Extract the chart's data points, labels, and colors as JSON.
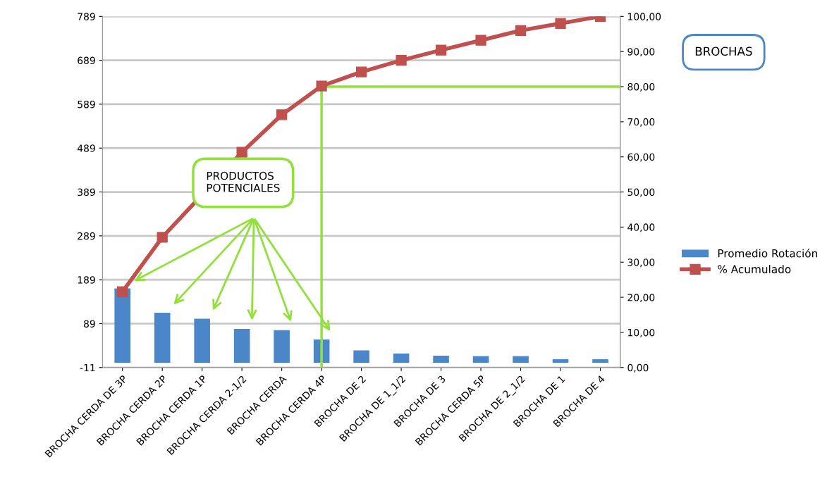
{
  "chart_data": {
    "type": "bar",
    "title": "BROCHAS",
    "categories": [
      "BROCHA CERDA DE 3P",
      "BROCHA CERDA 2P",
      "BROCHA CERDA 1P",
      "BROCHA CERDA 2-1/2",
      "BROCHA CERDA",
      "BROCHA CERDA 4P",
      "BROCHA DE 2",
      "BROCHA DE 1_1/2",
      "BROCHA DE 3",
      "BROCHA CERDA 5P",
      "BROCHA DE 2_1/2",
      "BROCHA DE 1",
      "BROCHA DE 4"
    ],
    "series": [
      {
        "name": "Promedio Rotación",
        "color": "#4a86c8",
        "values": [
          169,
          114,
          100,
          77,
          74,
          53,
          28,
          21,
          16,
          15,
          15,
          8,
          8
        ]
      },
      {
        "name": "% Acumulado",
        "type": "line",
        "axis": "y2",
        "color": "#c0504d",
        "marker": "square",
        "values": [
          21.6,
          37.1,
          null,
          61.3,
          72,
          80.2,
          84.2,
          87.5,
          90.4,
          93.2,
          96,
          98,
          100
        ]
      }
    ],
    "ylim": [
      -11,
      789
    ],
    "yticks": [
      -11,
      89,
      189,
      289,
      389,
      489,
      589,
      689,
      789
    ],
    "y2lim": [
      0,
      100
    ],
    "y2ticks": [
      {
        "value": 0,
        "label": "0,00"
      },
      {
        "value": 10,
        "label": "10,00"
      },
      {
        "value": 20,
        "label": "20,00"
      },
      {
        "value": 30,
        "label": "30,00"
      },
      {
        "value": 40,
        "label": "40,00"
      },
      {
        "value": 50,
        "label": "50,00"
      },
      {
        "value": 60,
        "label": "60,00"
      },
      {
        "value": 70,
        "label": "70,00"
      },
      {
        "value": 80,
        "label": "80,00"
      },
      {
        "value": 90,
        "label": "90,00"
      },
      {
        "value": 100,
        "label": "100,00"
      }
    ],
    "ref_lines": [
      {
        "axis": "x",
        "value": "BROCHA CERDA 4P",
        "color": "#92e03c"
      },
      {
        "axis": "y2",
        "value": 80,
        "color": "#92e03c"
      }
    ],
    "annotations": [
      "PRODUCTOS POTENCIALES"
    ],
    "grid": "y",
    "legend": "right"
  }
}
